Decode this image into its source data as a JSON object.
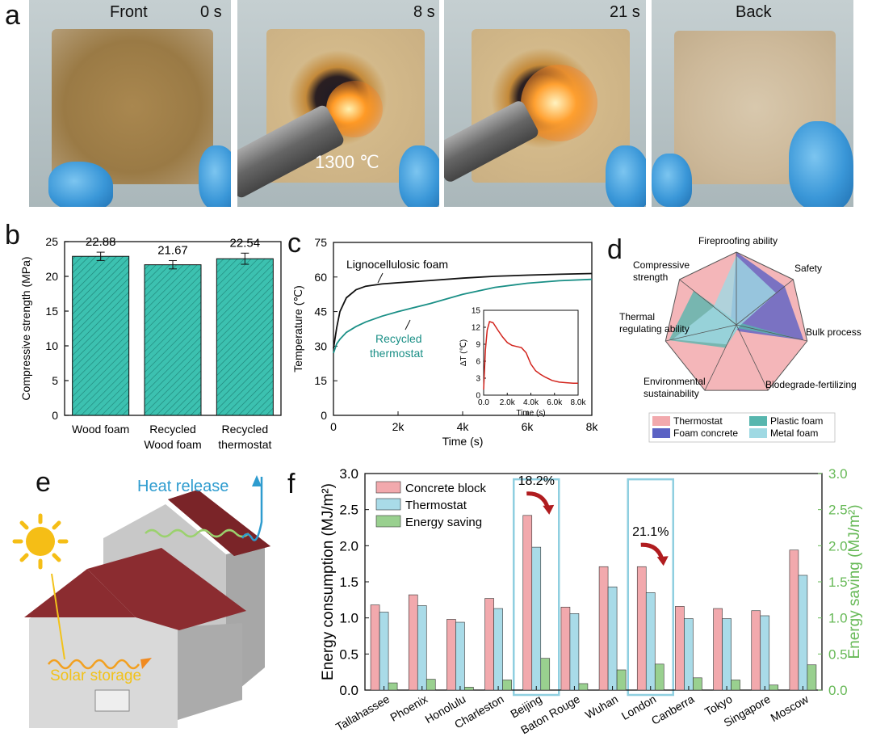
{
  "panels": {
    "a": "a",
    "b": "b",
    "c": "c",
    "d": "d",
    "e": "e",
    "f": "f"
  },
  "panel_a": {
    "photos": [
      {
        "left_label": "Front",
        "right_label": "0 s"
      },
      {
        "left_label": "",
        "right_label": "8 s"
      },
      {
        "left_label": "",
        "right_label": "21 s"
      },
      {
        "left_label": "Back",
        "right_label": ""
      }
    ],
    "temp_label": "1300 ℃"
  },
  "chart_data": [
    {
      "id": "b",
      "type": "bar",
      "categories": [
        [
          "Wood foam"
        ],
        [
          "Recycled",
          "Wood foam"
        ],
        [
          "Recycled",
          "thermostat"
        ]
      ],
      "values": [
        22.88,
        21.67,
        22.54
      ],
      "errors": [
        0.6,
        0.6,
        0.8
      ],
      "value_labels": [
        "22.88",
        "21.67",
        "22.54"
      ],
      "ylabel": "Compressive strength (MPa)",
      "ylim": [
        0,
        25
      ],
      "yticks": [
        0,
        5,
        10,
        15,
        20,
        25
      ],
      "bar_color": "#3cc1b0"
    },
    {
      "id": "c",
      "type": "line",
      "xlabel": "Time (s)",
      "ylabel": "Temperature (℃)",
      "xlim": [
        0,
        8000
      ],
      "ylim": [
        0,
        75
      ],
      "xticks": [
        0,
        2000,
        4000,
        6000,
        8000
      ],
      "xtick_labels": [
        "0",
        "2k",
        "4k",
        "6k",
        "8k"
      ],
      "yticks": [
        0,
        15,
        30,
        45,
        60,
        75
      ],
      "series": [
        {
          "name": "Lignocellulosic foam",
          "color": "#111111",
          "x": [
            0,
            100,
            200,
            400,
            700,
            1000,
            1500,
            2000,
            3000,
            4000,
            5000,
            6000,
            7000,
            8000
          ],
          "y": [
            29,
            38,
            45,
            51,
            54.5,
            56,
            57,
            57.5,
            58.5,
            59.5,
            60.3,
            60.8,
            61.2,
            61.5
          ]
        },
        {
          "name": "Recycled thermostat",
          "label_lines": [
            "Recycled",
            "thermostat"
          ],
          "color": "#1a8f86",
          "x": [
            0,
            100,
            200,
            400,
            700,
            1000,
            1500,
            2000,
            3000,
            4000,
            5000,
            6000,
            7000,
            8000
          ],
          "y": [
            27,
            31,
            33,
            36,
            38.5,
            40.5,
            43,
            45,
            48.5,
            52.5,
            55.5,
            57.3,
            58.4,
            59
          ]
        }
      ],
      "inset": {
        "xlabel": "Time (s)",
        "ylabel": "ΔT (℃)",
        "xlim": [
          0,
          8000
        ],
        "ylim": [
          0,
          15
        ],
        "xticks": [
          0,
          2000,
          4000,
          6000,
          8000
        ],
        "xtick_labels": [
          "0.0",
          "2.0k",
          "4.0k",
          "6.0k",
          "8.0k"
        ],
        "yticks": [
          0,
          3,
          6,
          9,
          12,
          15
        ],
        "color": "#d2231c",
        "x": [
          0,
          150,
          300,
          500,
          800,
          1200,
          1600,
          2000,
          2400,
          2800,
          3200,
          3600,
          4000,
          4400,
          4800,
          5200,
          5800,
          6400,
          7000,
          7600,
          8000
        ],
        "y": [
          1,
          8,
          11.5,
          13,
          12.8,
          11.5,
          10.3,
          9.3,
          8.8,
          8.6,
          8.4,
          7.5,
          5.5,
          4.3,
          3.7,
          3.2,
          2.6,
          2.3,
          2.2,
          2.1,
          2.1
        ]
      }
    },
    {
      "id": "d",
      "type": "radar",
      "axes": [
        "Fireproofing ability",
        "Safety",
        "Bulk process",
        "Biodegrade-fertilizing",
        "Environmental sustainability",
        "Thermal regulating ability",
        "Compressive strength"
      ],
      "axis_label_lines": [
        [
          "Fireproofing ability"
        ],
        [
          "Safety"
        ],
        [
          "Bulk process"
        ],
        [
          "Biodegrade-fertilizing"
        ],
        [
          "Environmental",
          "sustainability"
        ],
        [
          "Thermal",
          "regulating ability"
        ],
        [
          "Compressive",
          "strength"
        ]
      ],
      "series": [
        {
          "name": "Thermostat",
          "color": "#f2a9ad",
          "values": [
            1,
            1,
            1,
            1,
            1,
            1,
            1
          ]
        },
        {
          "name": "Foam concrete",
          "color": "#5b62c4",
          "values": [
            1,
            0.85,
            0.95,
            0.1,
            0.05,
            0.05,
            0.1
          ]
        },
        {
          "name": "Plastic foam",
          "color": "#57b6ae",
          "values": [
            0.05,
            0.05,
            0.9,
            0.05,
            0.35,
            0.95,
            0.75
          ]
        },
        {
          "name": "Metal foam",
          "color": "#9fd9e3",
          "values": [
            0.95,
            0.7,
            0.05,
            0.05,
            0.3,
            0.9,
            0.4
          ]
        }
      ],
      "legend": [
        "Thermostat",
        "Plastic foam",
        "Foam concrete",
        "Metal foam"
      ]
    },
    {
      "id": "f",
      "type": "bar",
      "categories": [
        "Tallahassee",
        "Phoenix",
        "Honolulu",
        "Charleston",
        "Beijing",
        "Baton Rouge",
        "Wuhan",
        "London",
        "Canberra",
        "Tokyo",
        "Singapore",
        "Moscow"
      ],
      "series": [
        {
          "name": "Concrete block",
          "color": "#f2a9ad",
          "axis": "left",
          "values": [
            1.18,
            1.32,
            0.98,
            1.27,
            2.42,
            1.15,
            1.71,
            1.71,
            1.16,
            1.13,
            1.1,
            1.94
          ]
        },
        {
          "name": "Thermostat",
          "color": "#a9dbe8",
          "axis": "left",
          "values": [
            1.08,
            1.17,
            0.94,
            1.13,
            1.98,
            1.06,
            1.43,
            1.35,
            0.99,
            0.99,
            1.03,
            1.59
          ]
        },
        {
          "name": "Energy saving",
          "color": "#99d08f",
          "axis": "right",
          "values": [
            0.1,
            0.15,
            0.04,
            0.14,
            0.44,
            0.09,
            0.28,
            0.36,
            0.17,
            0.14,
            0.07,
            0.35
          ]
        }
      ],
      "ylabel": "Energy consumption (MJ/m²)",
      "ylabel_right": "Energy saving (MJ/m²)",
      "ylim": [
        0,
        3.0
      ],
      "ylim_right": [
        0,
        3.0
      ],
      "yticks": [
        "0.0",
        "0.5",
        "1.0",
        "1.5",
        "2.0",
        "2.5",
        "3.0"
      ],
      "annotations": [
        {
          "category": "Beijing",
          "text": "18.2%"
        },
        {
          "category": "London",
          "text": "21.1%"
        }
      ]
    }
  ],
  "panel_e": {
    "heat_label": "Heat release",
    "solar_label": "Solar storage"
  },
  "colors": {
    "heat_text": "#2e9ccf",
    "solar_text": "#f2c21a",
    "right_axis": "#67b957",
    "roof": "#8b2c30",
    "highlight_box": "#8fcfe0",
    "arrow": "#b01c1f"
  }
}
